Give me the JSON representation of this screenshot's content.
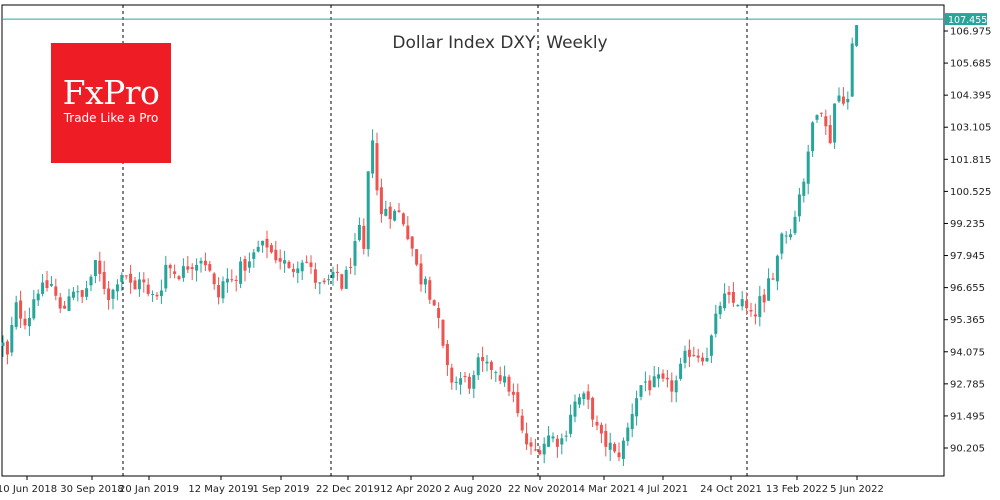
{
  "chart_data": {
    "type": "candlestick",
    "title": "Dollar Index DXY, Weekly",
    "timeframe": "Weekly",
    "current_price": "107.455",
    "ylim": [
      89.5,
      107.8
    ],
    "y_ticks": [
      "106.975",
      "105.685",
      "104.395",
      "103.105",
      "101.815",
      "100.525",
      "99.235",
      "97.945",
      "96.655",
      "95.365",
      "94.075",
      "92.785",
      "91.495",
      "90.205"
    ],
    "x_ticks": [
      "10 Jun 2018",
      "30 Sep 2018",
      "20 Jan 2019",
      "12 May 2019",
      "1 Sep 2019",
      "22 Dec 2019",
      "12 Apr 2020",
      "2 Aug 2020",
      "22 Nov 2020",
      "14 Mar 2021",
      "4 Jul 2021",
      "24 Oct 2021",
      "13 Feb 2022",
      "5 Jun 2022"
    ],
    "path_points": [
      [
        0,
        94.7
      ],
      [
        8,
        93.8
      ],
      [
        12,
        95.1
      ],
      [
        15,
        96.0
      ],
      [
        20,
        95.6
      ],
      [
        26,
        95.3
      ],
      [
        30,
        95.6
      ],
      [
        36,
        96.6
      ],
      [
        44,
        96.6
      ],
      [
        52,
        96.8
      ],
      [
        60,
        95.7
      ],
      [
        66,
        95.9
      ],
      [
        71,
        96.8
      ],
      [
        76,
        96.4
      ],
      [
        82,
        96.2
      ],
      [
        90,
        97.0
      ],
      [
        96,
        97.6
      ],
      [
        100,
        97.1
      ],
      [
        110,
        96.2
      ],
      [
        120,
        97.3
      ],
      [
        126,
        97.2
      ],
      [
        134,
        96.4
      ],
      [
        140,
        97.2
      ],
      [
        148,
        96.3
      ],
      [
        156,
        96.3
      ],
      [
        162,
        96.8
      ],
      [
        166,
        97.6
      ],
      [
        174,
        97.3
      ],
      [
        180,
        97.2
      ],
      [
        186,
        97.5
      ],
      [
        196,
        97.7
      ],
      [
        202,
        97.9
      ],
      [
        208,
        97.5
      ],
      [
        212,
        96.9
      ],
      [
        218,
        96.2
      ],
      [
        224,
        97.0
      ],
      [
        234,
        96.9
      ],
      [
        238,
        97.4
      ],
      [
        244,
        97.5
      ],
      [
        250,
        97.6
      ],
      [
        256,
        98.2
      ],
      [
        262,
        98.3
      ],
      [
        268,
        98.4
      ],
      [
        272,
        98.0
      ],
      [
        280,
        97.8
      ],
      [
        286,
        97.6
      ],
      [
        290,
        97.2
      ],
      [
        296,
        97.6
      ],
      [
        304,
        97.9
      ],
      [
        310,
        97.4
      ],
      [
        316,
        96.9
      ],
      [
        322,
        96.6
      ],
      [
        328,
        96.9
      ],
      [
        332,
        96.9
      ],
      [
        336,
        97.4
      ],
      [
        342,
        96.7
      ],
      [
        350,
        97.6
      ],
      [
        356,
        98.4
      ],
      [
        360,
        99.0
      ],
      [
        364,
        98.0
      ],
      [
        368,
        101.0
      ],
      [
        372,
        103.1
      ],
      [
        376,
        101.0
      ],
      [
        380,
        99.4
      ],
      [
        384,
        99.8
      ],
      [
        388,
        100.0
      ],
      [
        392,
        99.4
      ],
      [
        396,
        99.8
      ],
      [
        402,
        99.5
      ],
      [
        406,
        99.0
      ],
      [
        410,
        98.6
      ],
      [
        416,
        97.6
      ],
      [
        420,
        96.8
      ],
      [
        424,
        97.4
      ],
      [
        430,
        96.4
      ],
      [
        436,
        95.8
      ],
      [
        440,
        94.9
      ],
      [
        444,
        93.9
      ],
      [
        448,
        93.2
      ],
      [
        454,
        92.8
      ],
      [
        460,
        93.0
      ],
      [
        466,
        92.9
      ],
      [
        472,
        92.7
      ],
      [
        478,
        93.6
      ],
      [
        484,
        93.5
      ],
      [
        488,
        93.4
      ],
      [
        494,
        93.5
      ],
      [
        500,
        93.1
      ],
      [
        508,
        92.7
      ],
      [
        512,
        92.4
      ],
      [
        516,
        91.9
      ],
      [
        520,
        91.0
      ],
      [
        524,
        90.6
      ],
      [
        530,
        90.1
      ],
      [
        536,
        90.1
      ],
      [
        542,
        90.3
      ],
      [
        548,
        90.7
      ],
      [
        554,
        90.6
      ],
      [
        560,
        90.4
      ],
      [
        566,
        90.9
      ],
      [
        570,
        91.6
      ],
      [
        576,
        92.1
      ],
      [
        582,
        92.3
      ],
      [
        588,
        92.0
      ],
      [
        594,
        91.4
      ],
      [
        598,
        90.8
      ],
      [
        604,
        90.4
      ],
      [
        610,
        90.3
      ],
      [
        616,
        89.8
      ],
      [
        622,
        90.2
      ],
      [
        628,
        91.0
      ],
      [
        634,
        92.0
      ],
      [
        640,
        92.7
      ],
      [
        646,
        92.9
      ],
      [
        652,
        92.6
      ],
      [
        656,
        93.0
      ],
      [
        662,
        92.8
      ],
      [
        668,
        92.7
      ],
      [
        674,
        92.6
      ],
      [
        680,
        93.3
      ],
      [
        684,
        93.8
      ],
      [
        690,
        94.1
      ],
      [
        696,
        94.0
      ],
      [
        702,
        93.9
      ],
      [
        708,
        94.0
      ],
      [
        714,
        95.1
      ],
      [
        720,
        96.0
      ],
      [
        726,
        96.3
      ],
      [
        732,
        96.0
      ],
      [
        738,
        96.1
      ],
      [
        744,
        96.0
      ],
      [
        748,
        95.6
      ],
      [
        754,
        95.3
      ],
      [
        758,
        96.3
      ],
      [
        764,
        95.8
      ],
      [
        768,
        96.9
      ],
      [
        772,
        97.1
      ],
      [
        778,
        98.0
      ],
      [
        782,
        99.0
      ],
      [
        786,
        98.8
      ],
      [
        790,
        99.0
      ],
      [
        796,
        99.6
      ],
      [
        800,
        100.7
      ],
      [
        806,
        101.2
      ],
      [
        810,
        102.5
      ],
      [
        814,
        103.7
      ],
      [
        818,
        103.9
      ],
      [
        822,
        103.9
      ],
      [
        826,
        103.0
      ],
      [
        828,
        102.1
      ],
      [
        832,
        103.1
      ],
      [
        836,
        104.6
      ],
      [
        840,
        104.3
      ],
      [
        844,
        104.3
      ],
      [
        848,
        104.2
      ],
      [
        852,
        106.3
      ],
      [
        855,
        106.9
      ],
      [
        858,
        107.45
      ]
    ]
  },
  "branding": {
    "logo_name": "FxPro",
    "logo_tagline": "Trade Like a Pro",
    "logo_color": "#ee1c25"
  },
  "colors": {
    "bull": "#26a69a",
    "bear": "#ef5350",
    "price_line": "#26a69a",
    "grid_separator": "#000000"
  }
}
